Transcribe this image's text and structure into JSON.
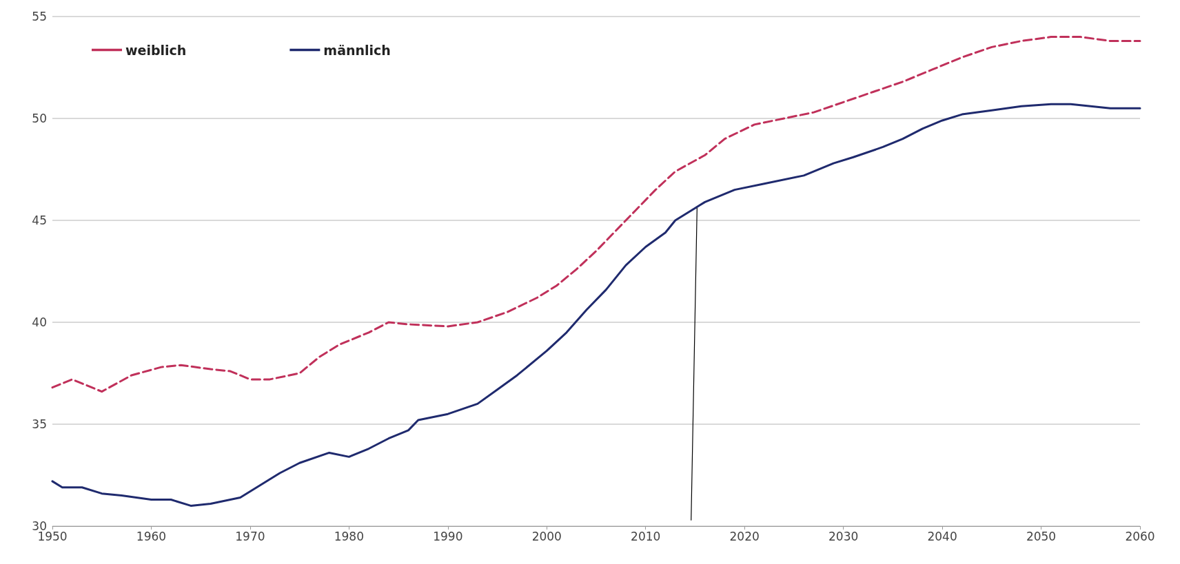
{
  "chart_data": {
    "type": "line",
    "xlim": [
      1950,
      2060
    ],
    "xticks": [
      1950,
      1960,
      1970,
      1980,
      1990,
      2000,
      2010,
      2020,
      2030,
      2040,
      2050,
      2060
    ],
    "ylim": [
      30,
      55
    ],
    "yticks": [
      30,
      35,
      40,
      45,
      50,
      55
    ],
    "grid": "y",
    "legend": "top left",
    "marker": "none",
    "series": [
      {
        "name": "weiblich",
        "color": "#c0305a",
        "line_style": "dashed",
        "x": [
          1950,
          1952,
          1955,
          1958,
          1961,
          1963,
          1966,
          1968,
          1970,
          1972,
          1975,
          1977,
          1979,
          1982,
          1984,
          1986,
          1990,
          1993,
          1996,
          1999,
          2001,
          2003,
          2005,
          2007,
          2009,
          2011,
          2013,
          2016,
          2018,
          2021,
          2024,
          2027,
          2030,
          2033,
          2036,
          2039,
          2042,
          2045,
          2048,
          2051,
          2054,
          2057,
          2060
        ],
        "values": [
          36.8,
          37.2,
          36.6,
          37.4,
          37.8,
          37.9,
          37.7,
          37.6,
          37.2,
          37.2,
          37.5,
          38.3,
          38.9,
          39.5,
          40.0,
          39.9,
          39.8,
          40.0,
          40.5,
          41.2,
          41.8,
          42.6,
          43.5,
          44.5,
          45.5,
          46.5,
          47.4,
          48.2,
          49.0,
          49.7,
          50.0,
          50.3,
          50.8,
          51.3,
          51.8,
          52.4,
          53.0,
          53.5,
          53.8,
          54.0,
          54.0,
          53.8,
          53.8
        ]
      },
      {
        "name": "männlich",
        "color": "#1f2a6e",
        "line_style": "solid",
        "x": [
          1950,
          1951,
          1953,
          1955,
          1957,
          1960,
          1962,
          1964,
          1966,
          1969,
          1971,
          1973,
          1975,
          1978,
          1980,
          1982,
          1984,
          1986,
          1987,
          1990,
          1993,
          1995,
          1997,
          2000,
          2002,
          2004,
          2006,
          2008,
          2010,
          2012,
          2013,
          2015,
          2016,
          2019,
          2022,
          2026,
          2029,
          2031,
          2034,
          2036,
          2038,
          2040,
          2042,
          2045,
          2048,
          2051,
          2053,
          2055,
          2057,
          2060
        ],
        "values": [
          32.2,
          31.9,
          31.9,
          31.6,
          31.5,
          31.3,
          31.3,
          31.0,
          31.1,
          31.4,
          32.0,
          32.6,
          33.1,
          33.6,
          33.4,
          33.8,
          34.3,
          34.7,
          35.2,
          35.5,
          36.0,
          36.7,
          37.4,
          38.6,
          39.5,
          40.6,
          41.6,
          42.8,
          43.7,
          44.4,
          45.0,
          45.6,
          45.9,
          46.5,
          46.8,
          47.2,
          47.8,
          48.1,
          48.6,
          49.0,
          49.5,
          49.9,
          50.2,
          50.4,
          50.6,
          50.7,
          50.7,
          50.6,
          50.5,
          50.5
        ]
      },
      {
        "color": "#000000",
        "line_style": "solid",
        "x": [
          2014.6,
          2015.2
        ],
        "values": [
          30.3,
          45.6
        ]
      }
    ]
  }
}
